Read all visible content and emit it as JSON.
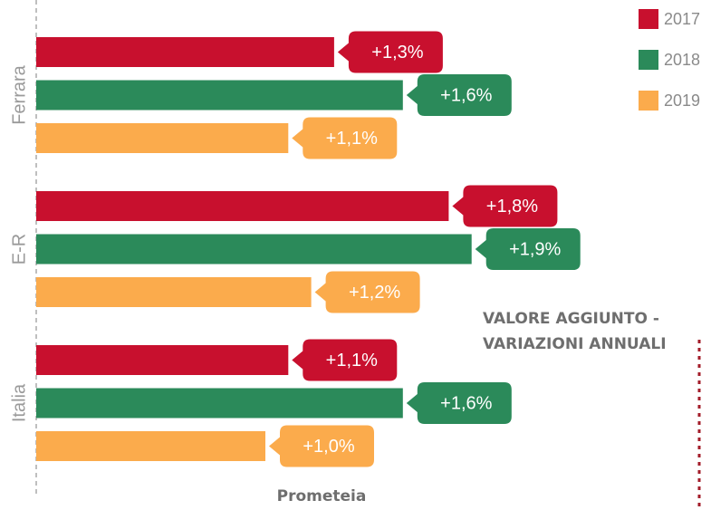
{
  "chart_data": {
    "type": "bar",
    "orientation": "horizontal",
    "title_lines": [
      "VALORE AGGIUNTO -",
      "VARIAZIONI ANNUALI"
    ],
    "source": "Prometeia",
    "categories": [
      "Ferrara",
      "E-R",
      "Italia"
    ],
    "series": [
      {
        "name": "2017",
        "color": "#c8102e",
        "values": [
          1.3,
          1.8,
          1.1
        ],
        "value_labels": [
          "+1,3%",
          "+1,8%",
          "+1,1%"
        ]
      },
      {
        "name": "2018",
        "color": "#2b8a5a",
        "values": [
          1.6,
          1.9,
          1.6
        ],
        "value_labels": [
          "+1,6%",
          "+1,9%",
          "+1,6%"
        ]
      },
      {
        "name": "2019",
        "color": "#fbab4c",
        "values": [
          1.1,
          1.2,
          1.0
        ],
        "value_labels": [
          "+1,1%",
          "+1,2%",
          "+1,0%"
        ]
      }
    ],
    "legend": "top-right"
  }
}
